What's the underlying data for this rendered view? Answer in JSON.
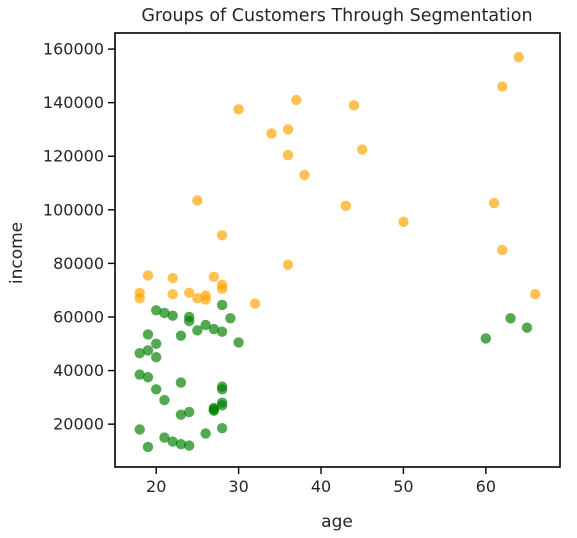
{
  "chart_data": {
    "type": "scatter",
    "title": "Groups of Customers Through Segmentation",
    "xlabel": "age",
    "ylabel": "income",
    "xlim": [
      15,
      69
    ],
    "ylim": [
      4000,
      166000
    ],
    "xticks": [
      20,
      30,
      40,
      50,
      60
    ],
    "yticks": [
      20000,
      40000,
      60000,
      80000,
      100000,
      120000,
      140000,
      160000
    ],
    "xtick_labels": [
      "20",
      "30",
      "40",
      "50",
      "60"
    ],
    "ytick_labels": [
      "20000",
      "40000",
      "60000",
      "80000",
      "100000",
      "120000",
      "140000",
      "160000"
    ],
    "grid": false,
    "series": [
      {
        "color": "#ffa500",
        "points": [
          [
            18,
            69000
          ],
          [
            18,
            67000
          ],
          [
            19,
            75500
          ],
          [
            22,
            74500
          ],
          [
            22,
            68500
          ],
          [
            24,
            69000
          ],
          [
            25,
            67000
          ],
          [
            25,
            103500
          ],
          [
            26,
            68000
          ],
          [
            26,
            66500
          ],
          [
            27,
            75000
          ],
          [
            28,
            72000
          ],
          [
            28,
            70500
          ],
          [
            28,
            90500
          ],
          [
            30,
            137500
          ],
          [
            32,
            65000
          ],
          [
            34,
            128500
          ],
          [
            36,
            130000
          ],
          [
            36,
            120500
          ],
          [
            36,
            79500
          ],
          [
            37,
            141000
          ],
          [
            38,
            113000
          ],
          [
            43,
            101500
          ],
          [
            44,
            139000
          ],
          [
            45,
            122500
          ],
          [
            50,
            95500
          ],
          [
            61,
            102500
          ],
          [
            62,
            146000
          ],
          [
            62,
            85000
          ],
          [
            64,
            157000
          ],
          [
            66,
            68500
          ]
        ]
      },
      {
        "color": "#008000",
        "points": [
          [
            18,
            46500
          ],
          [
            18,
            38500
          ],
          [
            18,
            18000
          ],
          [
            19,
            53500
          ],
          [
            19,
            47500
          ],
          [
            19,
            37500
          ],
          [
            19,
            11500
          ],
          [
            20,
            62500
          ],
          [
            20,
            50000
          ],
          [
            20,
            45000
          ],
          [
            20,
            33000
          ],
          [
            21,
            61500
          ],
          [
            21,
            29000
          ],
          [
            21,
            15000
          ],
          [
            22,
            60500
          ],
          [
            22,
            13500
          ],
          [
            23,
            53000
          ],
          [
            23,
            35500
          ],
          [
            23,
            23500
          ],
          [
            23,
            12500
          ],
          [
            24,
            60000
          ],
          [
            24,
            58500
          ],
          [
            24,
            24500
          ],
          [
            24,
            12000
          ],
          [
            25,
            55000
          ],
          [
            26,
            57000
          ],
          [
            26,
            16500
          ],
          [
            27,
            55500
          ],
          [
            27,
            26000
          ],
          [
            27,
            25500
          ],
          [
            27,
            25000
          ],
          [
            28,
            64500
          ],
          [
            28,
            54500
          ],
          [
            28,
            34000
          ],
          [
            28,
            33000
          ],
          [
            28,
            28000
          ],
          [
            28,
            27000
          ],
          [
            28,
            18500
          ],
          [
            29,
            59500
          ],
          [
            30,
            50500
          ],
          [
            60,
            52000
          ],
          [
            63,
            59500
          ],
          [
            65,
            56000
          ]
        ]
      }
    ]
  }
}
